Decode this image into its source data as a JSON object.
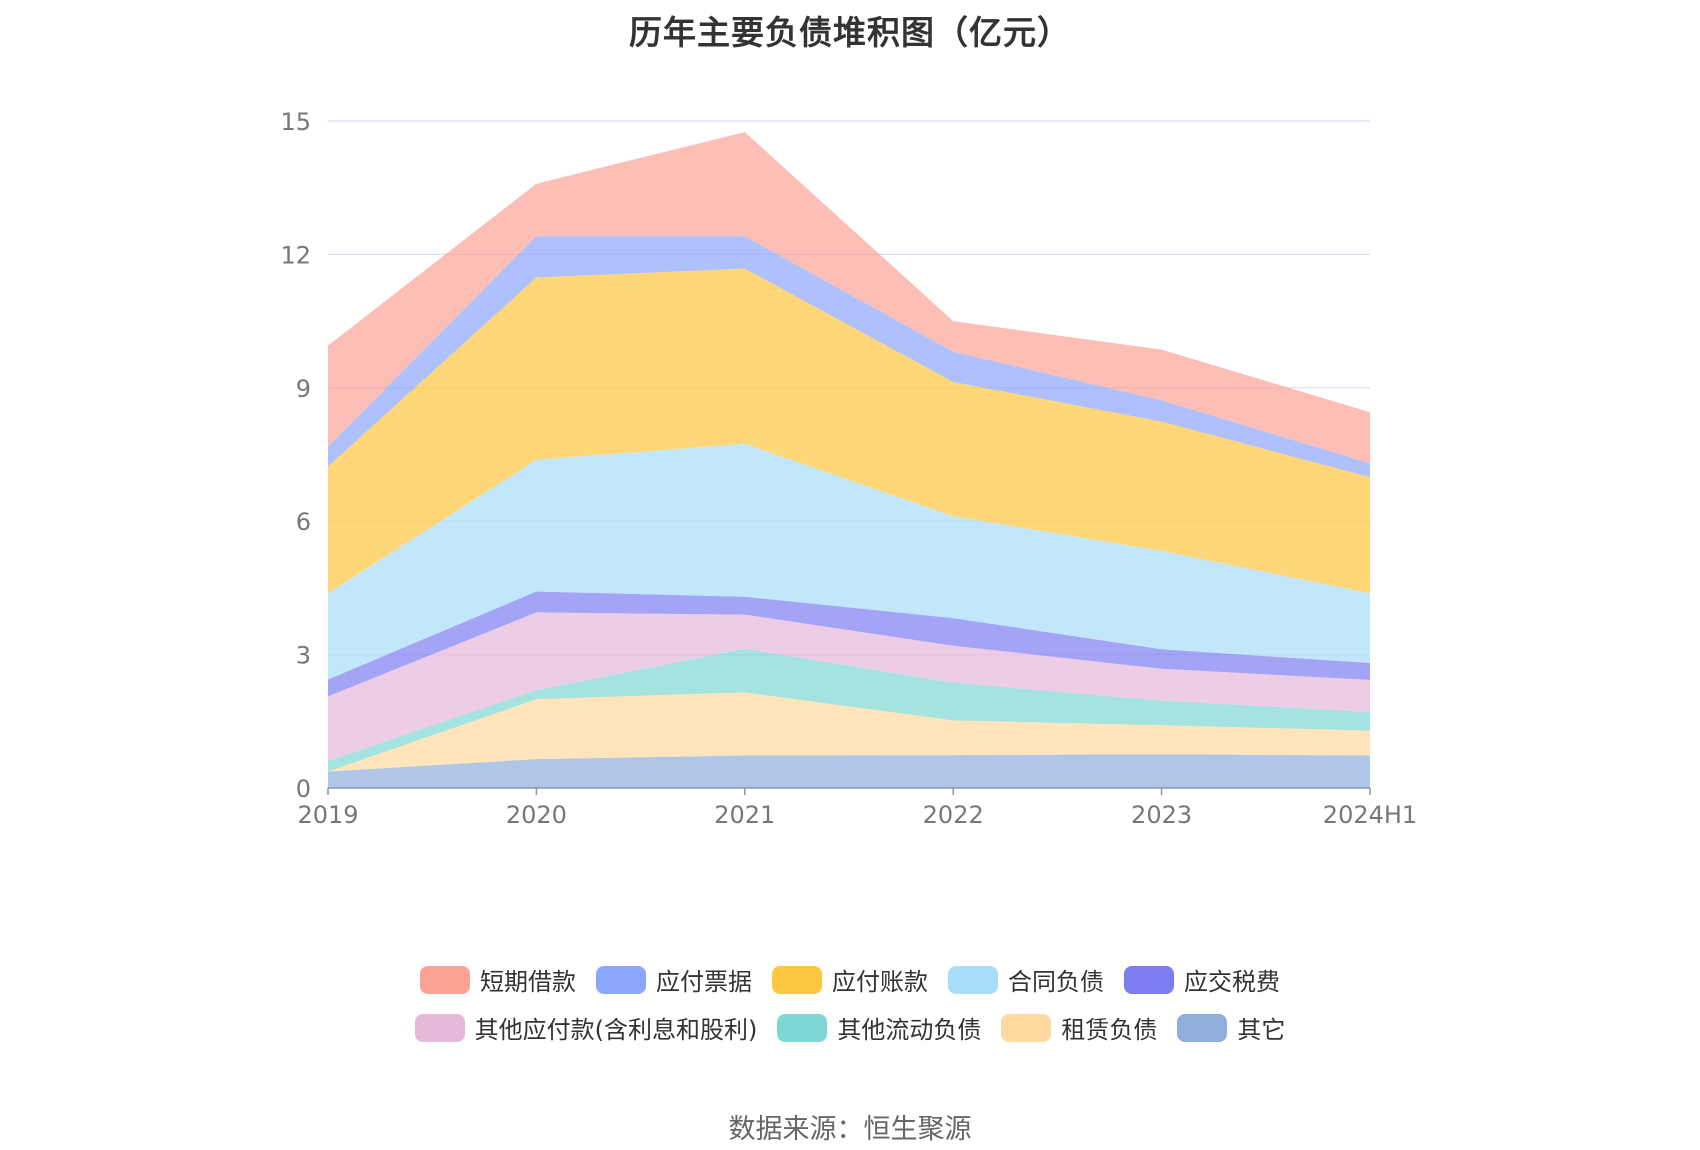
{
  "chart_data": {
    "type": "area",
    "stacked": true,
    "title": "历年主要负债堆积图（亿元）",
    "categories": [
      "2019",
      "2020",
      "2021",
      "2022",
      "2023",
      "2024H1"
    ],
    "ylim": [
      0,
      15
    ],
    "yticks": [
      0,
      3,
      6,
      9,
      12,
      15
    ],
    "grid": true,
    "legend_position": "bottom",
    "series": [
      {
        "name": "其它",
        "color": "#8FAEDB",
        "values": [
          0.37,
          0.65,
          0.73,
          0.74,
          0.76,
          0.73
        ]
      },
      {
        "name": "租赁负债",
        "color": "#FFD99F",
        "values": [
          0.0,
          1.35,
          1.42,
          0.78,
          0.65,
          0.56
        ]
      },
      {
        "name": "其他流动负债",
        "color": "#7ED7D2",
        "values": [
          0.24,
          0.2,
          0.98,
          0.85,
          0.55,
          0.42
        ]
      },
      {
        "name": "其他应付款(含利息和股利)",
        "color": "#E6B8DA",
        "values": [
          1.45,
          1.75,
          0.77,
          0.83,
          0.72,
          0.72
        ]
      },
      {
        "name": "应交税费",
        "color": "#7D7DF2",
        "values": [
          0.38,
          0.47,
          0.4,
          0.62,
          0.44,
          0.38
        ]
      },
      {
        "name": "合同负债",
        "color": "#A8DDF9",
        "values": [
          1.94,
          2.96,
          3.44,
          2.29,
          2.21,
          1.57
        ]
      },
      {
        "name": "应付账款",
        "color": "#FFC640",
        "values": [
          2.85,
          4.1,
          3.94,
          3.02,
          2.91,
          2.61
        ]
      },
      {
        "name": "应付票据",
        "color": "#8BA7FC",
        "values": [
          0.45,
          0.93,
          0.73,
          0.68,
          0.48,
          0.31
        ]
      },
      {
        "name": "短期借款",
        "color": "#FBA295",
        "values": [
          2.27,
          1.18,
          2.34,
          0.69,
          1.14,
          1.15
        ]
      }
    ]
  },
  "legend_order": [
    "短期借款",
    "应付票据",
    "应付账款",
    "合同负债",
    "应交税费",
    "其他应付款(含利息和股利)",
    "其他流动负债",
    "租赁负债",
    "其它"
  ],
  "source": "数据来源：恒生聚源"
}
